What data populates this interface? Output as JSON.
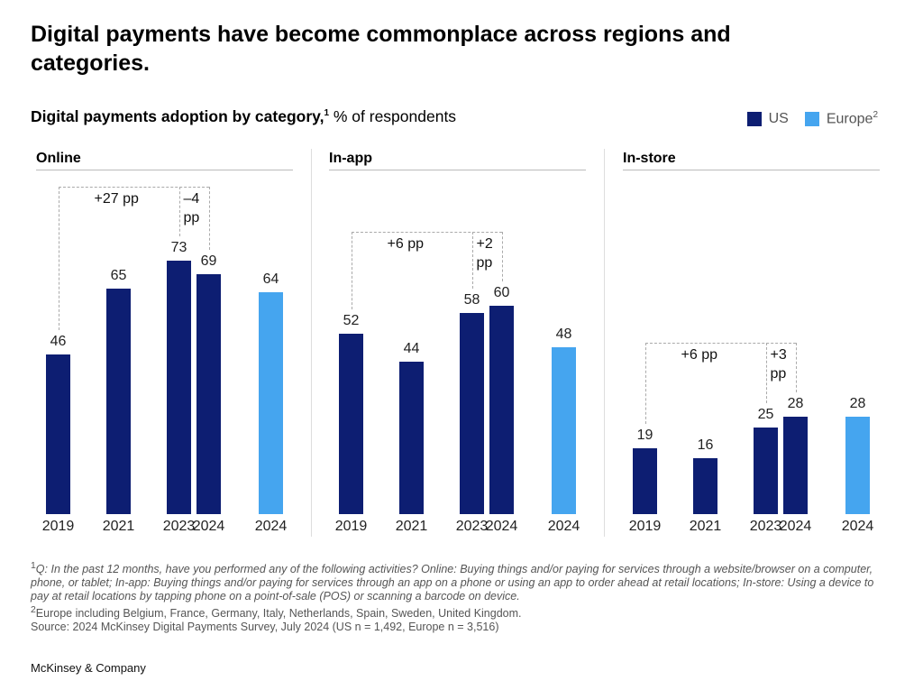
{
  "title": "Digital payments have become commonplace across regions and categories.",
  "subtitle_bold": "Digital payments adoption by category,",
  "subtitle_sup": "1",
  "subtitle_rest": " % of respondents",
  "legend": [
    {
      "label": "US",
      "sup": "",
      "color": "#0d1e72"
    },
    {
      "label": "Europe",
      "sup": "2",
      "color": "#45a5ef"
    }
  ],
  "chart_data": [
    {
      "type": "bar",
      "title": "Online",
      "categories": [
        "2019",
        "2021",
        "2023",
        "2024",
        "2024"
      ],
      "series_by_bar": [
        "US",
        "US",
        "US",
        "US",
        "Europe"
      ],
      "values": [
        46,
        65,
        73,
        69,
        64
      ],
      "annotations": [
        "+27 pp",
        "–4 pp"
      ],
      "ylim": [
        0,
        100
      ]
    },
    {
      "type": "bar",
      "title": "In-app",
      "categories": [
        "2019",
        "2021",
        "2023",
        "2024",
        "2024"
      ],
      "series_by_bar": [
        "US",
        "US",
        "US",
        "US",
        "Europe"
      ],
      "values": [
        52,
        44,
        58,
        60,
        48
      ],
      "annotations": [
        "+6 pp",
        "+2 pp"
      ],
      "ylim": [
        0,
        100
      ]
    },
    {
      "type": "bar",
      "title": "In-store",
      "categories": [
        "2019",
        "2021",
        "2023",
        "2024",
        "2024"
      ],
      "series_by_bar": [
        "US",
        "US",
        "US",
        "US",
        "Europe"
      ],
      "values": [
        19,
        16,
        25,
        28,
        28
      ],
      "annotations": [
        "+6 pp",
        "+3 pp"
      ],
      "ylim": [
        0,
        100
      ]
    }
  ],
  "footnotes": {
    "f1_sup": "1",
    "f1": "Q: In the past 12 months, have you performed any of the following activities? Online: Buying things and/or paying for services through a website/browser on a computer, phone, or tablet; In-app: Buying things and/or paying for services through an app on a phone or using an app to order ahead at retail locations; In-store: Using a device to pay at retail locations by tapping phone on a point-of-sale (POS) or scanning a barcode on device.",
    "f2_sup": "2",
    "f2": "Europe including Belgium, France, Germany, Italy, Netherlands, Spain, Sweden, United Kingdom.",
    "source": "Source: 2024 McKinsey Digital Payments Survey, July 2024 (US n = 1,492, Europe n = 3,516)"
  },
  "logo": "McKinsey & Company"
}
